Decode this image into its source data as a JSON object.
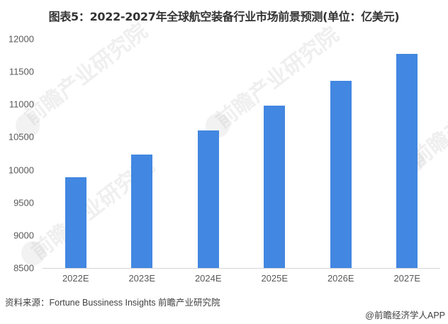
{
  "title": "图表5：2022-2027年全球航空装备行业市场前景预测(单位：亿美元)",
  "source": "资料来源：Fortune Bussiness Insights 前瞻产业研究院",
  "credit": "@前瞻经济学人APP",
  "watermark": "前瞻产业研究院",
  "colors": {
    "bar": "#4287e1",
    "axis": "#d4d4d4",
    "text": "#595959"
  },
  "chart_data": {
    "type": "bar",
    "title": "图表5：2022-2027年全球航空装备行业市场前景预测(单位：亿美元)",
    "xlabel": "",
    "ylabel": "亿美元",
    "categories": [
      "2022E",
      "2023E",
      "2024E",
      "2025E",
      "2026E",
      "2027E"
    ],
    "values": [
      9890,
      10230,
      10600,
      10980,
      11360,
      11770
    ],
    "ylim": [
      8500,
      12000
    ],
    "yticks": [
      12000,
      11500,
      11000,
      10500,
      10000,
      9500,
      9000,
      8500
    ],
    "grid": false,
    "legend": "none"
  }
}
